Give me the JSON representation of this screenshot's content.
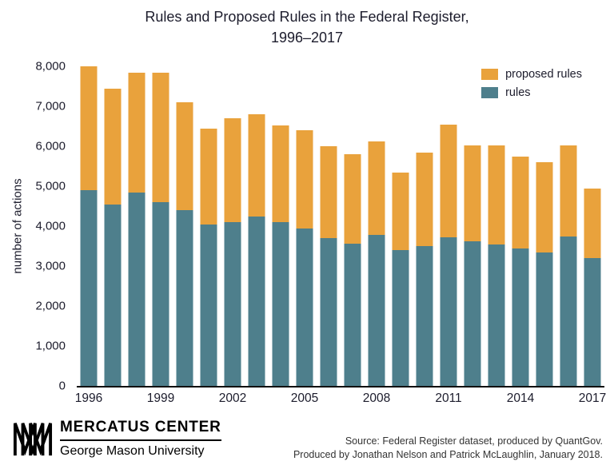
{
  "title": {
    "line1": "Rules and Proposed Rules in the Federal Register,",
    "line2": "1996–2017"
  },
  "chart_data": {
    "type": "bar",
    "stacked": true,
    "title": "Rules and Proposed Rules in the Federal Register, 1996–2017",
    "xlabel": "",
    "ylabel": "number of actions",
    "ylim": [
      0,
      8000
    ],
    "yticks": [
      0,
      1000,
      2000,
      3000,
      4000,
      5000,
      6000,
      7000,
      8000
    ],
    "xticks": [
      1996,
      1999,
      2002,
      2005,
      2008,
      2011,
      2014,
      2017
    ],
    "legend_position": "top-right",
    "grid": false,
    "x": [
      1996,
      1997,
      1998,
      1999,
      2000,
      2001,
      2002,
      2003,
      2004,
      2005,
      2006,
      2007,
      2008,
      2009,
      2010,
      2011,
      2012,
      2013,
      2014,
      2015,
      2016,
      2017
    ],
    "series": [
      {
        "name": "rules",
        "color": "#4e7f8c",
        "values": [
          4900,
          4550,
          4850,
          4600,
          4400,
          4050,
          4100,
          4250,
          4100,
          3950,
          3700,
          3570,
          3780,
          3400,
          3500,
          3720,
          3620,
          3550,
          3450,
          3350,
          3750,
          3200
        ]
      },
      {
        "name": "proposed rules",
        "color": "#e9a23c",
        "values": [
          3100,
          2900,
          3000,
          3250,
          2700,
          2400,
          2600,
          2550,
          2420,
          2450,
          2300,
          2230,
          2350,
          1950,
          2350,
          2830,
          2400,
          2480,
          2300,
          2250,
          2280,
          1750
        ]
      }
    ]
  },
  "footer": {
    "logo_title": "MERCATUS CENTER",
    "logo_subtitle": "George Mason University",
    "source_line1": "Source: Federal Register dataset, produced by QuantGov.",
    "source_line2": "Produced by Jonathan Nelson and Patrick McLaughlin, January 2018."
  }
}
